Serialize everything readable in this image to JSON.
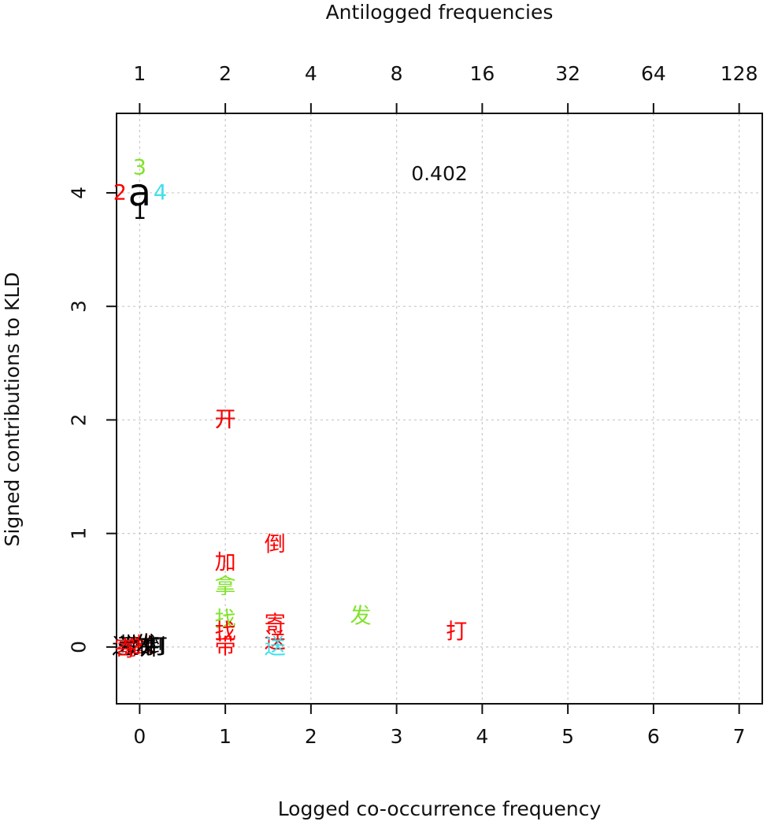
{
  "chart_data": {
    "type": "scatter",
    "title": "",
    "xlabel": "Logged co-occurrence frequency",
    "ylabel": "Signed contributions to KLD",
    "top_axis_label": "Antilogged frequencies",
    "annotation": "0.402",
    "xlim": [
      -0.27,
      7.27
    ],
    "ylim": [
      -0.5,
      4.7
    ],
    "grid": true,
    "x_ticks": [
      {
        "value": 0,
        "label": "0"
      },
      {
        "value": 1,
        "label": "1"
      },
      {
        "value": 2,
        "label": "2"
      },
      {
        "value": 3,
        "label": "3"
      },
      {
        "value": 4,
        "label": "4"
      },
      {
        "value": 5,
        "label": "5"
      },
      {
        "value": 6,
        "label": "6"
      },
      {
        "value": 7,
        "label": "7"
      }
    ],
    "top_ticks": [
      {
        "value": 0,
        "label": "1"
      },
      {
        "value": 1,
        "label": "2"
      },
      {
        "value": 2,
        "label": "4"
      },
      {
        "value": 3,
        "label": "8"
      },
      {
        "value": 4,
        "label": "16"
      },
      {
        "value": 5,
        "label": "32"
      },
      {
        "value": 6,
        "label": "64"
      },
      {
        "value": 7,
        "label": "128"
      }
    ],
    "y_ticks": [
      {
        "value": 0,
        "label": "0"
      },
      {
        "value": 1,
        "label": "1"
      },
      {
        "value": 2,
        "label": "2"
      },
      {
        "value": 3,
        "label": "3"
      },
      {
        "value": 4,
        "label": "4"
      }
    ],
    "colors": {
      "1": "#000000",
      "2": "#ff0000",
      "3": "#7fe32a",
      "4": "#3fe0ea"
    },
    "points": [
      {
        "label": "a",
        "x": 0.0,
        "y": 4.0,
        "group": "1",
        "big": true
      },
      {
        "label": "1",
        "x": 0.0,
        "y": 3.83,
        "group": "1"
      },
      {
        "label": "2",
        "x": -0.23,
        "y": 4.0,
        "group": "2"
      },
      {
        "label": "3",
        "x": 0.0,
        "y": 4.22,
        "group": "3"
      },
      {
        "label": "4",
        "x": 0.24,
        "y": 4.0,
        "group": "4"
      },
      {
        "label": "开",
        "x": 1.0,
        "y": 2.0,
        "group": "1"
      },
      {
        "label": "开",
        "x": 1.0,
        "y": 2.0,
        "group": "2"
      },
      {
        "label": "倒",
        "x": 1.58,
        "y": 0.9,
        "group": "2"
      },
      {
        "label": "加",
        "x": 1.0,
        "y": 0.74,
        "group": "2"
      },
      {
        "label": "拿",
        "x": 1.0,
        "y": 0.53,
        "group": "3"
      },
      {
        "label": "发",
        "x": 2.58,
        "y": 0.27,
        "group": "3"
      },
      {
        "label": "找",
        "x": 1.0,
        "y": 0.24,
        "group": "3"
      },
      {
        "label": "找",
        "x": 1.0,
        "y": 0.13,
        "group": "2"
      },
      {
        "label": "寄",
        "x": 1.58,
        "y": 0.2,
        "group": "2"
      },
      {
        "label": "打",
        "x": 3.7,
        "y": 0.13,
        "group": "2"
      },
      {
        "label": "带",
        "x": 1.0,
        "y": 0.0,
        "group": "2"
      },
      {
        "label": "送",
        "x": 1.58,
        "y": 0.05,
        "group": "2"
      },
      {
        "label": "送",
        "x": 1.58,
        "y": 0.0,
        "group": "4"
      },
      {
        "label": "送",
        "x": -0.2,
        "y": 0.0,
        "group": "1"
      },
      {
        "label": "带",
        "x": -0.13,
        "y": 0.01,
        "group": "1"
      },
      {
        "label": "拿",
        "x": -0.06,
        "y": -0.01,
        "group": "2"
      },
      {
        "label": "加",
        "x": 0.0,
        "y": 0.0,
        "group": "1"
      },
      {
        "label": "找",
        "x": 0.06,
        "y": 0.01,
        "group": "2"
      },
      {
        "label": "开",
        "x": 0.12,
        "y": -0.01,
        "group": "1"
      },
      {
        "label": "倒",
        "x": 0.18,
        "y": 0.0,
        "group": "1"
      },
      {
        "label": "寄",
        "x": -0.17,
        "y": -0.02,
        "group": "2"
      },
      {
        "label": "发",
        "x": 0.08,
        "y": 0.02,
        "group": "1"
      },
      {
        "label": "打",
        "x": 0.2,
        "y": 0.0,
        "group": "1"
      }
    ]
  }
}
